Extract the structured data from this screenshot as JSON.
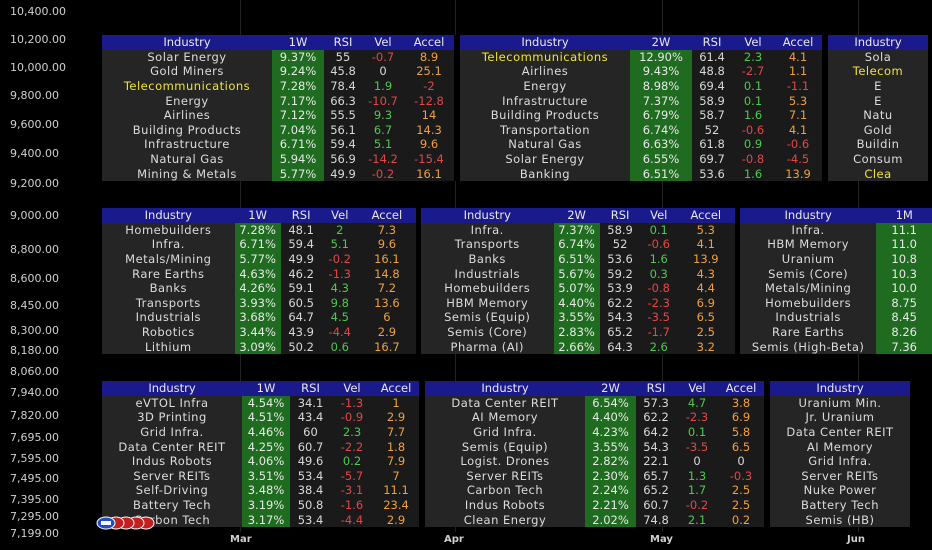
{
  "y_axis": {
    "labels": [
      "10,400.00",
      "10,200.00",
      "10,000.00",
      "9,800.00",
      "9,600.00",
      "9,400.00",
      "9,200.00",
      "9,000.00",
      "8,800.00",
      "8,600.00",
      "8,450.00",
      "8,300.00",
      "8,180.00",
      "8,060.00",
      "7,940.00",
      "7,820.00",
      "7,695.00",
      "7,595.00",
      "7,495.00",
      "7,395.00",
      "7,295.00",
      "7,199.00"
    ]
  },
  "x_axis": {
    "labels": [
      "Mar",
      "Apr",
      "May",
      "Jun"
    ]
  },
  "colors": {
    "header": "#1a1a8c",
    "pct_bg": "#1f6b1f",
    "pos": "#4ec94e",
    "neg": "#e04848",
    "accel_pos": "#f0a040",
    "highlight": "#f2e23a"
  },
  "badge_icon": "logo-badge-icon",
  "panels": [
    {
      "headers": [
        "Industry",
        "1W",
        "RSI",
        "Vel",
        "Accel",
        "Industry",
        "2W",
        "RSI",
        "Vel",
        "Accel",
        "Industry"
      ],
      "rows": [
        [
          "Solar Energy",
          "9.37%",
          "55",
          "-0.7",
          "8.9",
          "Telecommunications",
          "12.90%",
          "61.4",
          "2.3",
          "4.1",
          "Sola"
        ],
        [
          "Gold Miners",
          "9.24%",
          "45.8",
          "0",
          "25.1",
          "Airlines",
          "9.43%",
          "48.8",
          "-2.7",
          "1.1",
          "Telecom"
        ],
        [
          "Telecommunications",
          "7.28%",
          "78.4",
          "1.9",
          "-2",
          "Energy",
          "8.98%",
          "69.4",
          "0.1",
          "-1.1",
          "E"
        ],
        [
          "Energy",
          "7.17%",
          "66.3",
          "-10.7",
          "-12.8",
          "Infrastructure",
          "7.37%",
          "58.9",
          "0.1",
          "5.3",
          "E"
        ],
        [
          "Airlines",
          "7.12%",
          "55.5",
          "9.3",
          "14",
          "Building Products",
          "6.79%",
          "58.7",
          "1.6",
          "7.1",
          "Natu"
        ],
        [
          "Building Products",
          "7.04%",
          "56.1",
          "6.7",
          "14.3",
          "Transportation",
          "6.74%",
          "52",
          "-0.6",
          "4.1",
          "Gold"
        ],
        [
          "Infrastructure",
          "6.71%",
          "59.4",
          "5.1",
          "9.6",
          "Natural Gas",
          "6.63%",
          "61.8",
          "0.9",
          "-0.6",
          "Buildin"
        ],
        [
          "Natural Gas",
          "5.94%",
          "56.9",
          "-14.2",
          "-15.4",
          "Solar Energy",
          "6.55%",
          "69.7",
          "-0.8",
          "-4.5",
          "Consum"
        ],
        [
          "Mining & Metals",
          "5.77%",
          "49.9",
          "-0.2",
          "16.1",
          "Banking",
          "6.51%",
          "53.6",
          "1.6",
          "13.9",
          "Clea"
        ]
      ]
    },
    {
      "headers": [
        "Industry",
        "1W",
        "RSI",
        "Vel",
        "Accel",
        "Industry",
        "2W",
        "RSI",
        "Vel",
        "Accel",
        "Industry",
        "1M"
      ],
      "rows": [
        [
          "Homebuilders",
          "7.28%",
          "48.1",
          "2",
          "7.3",
          "Infra.",
          "7.37%",
          "58.9",
          "0.1",
          "5.3",
          "Infra.",
          "11.1"
        ],
        [
          "Infra.",
          "6.71%",
          "59.4",
          "5.1",
          "9.6",
          "Transports",
          "6.74%",
          "52",
          "-0.6",
          "4.1",
          "HBM Memory",
          "11.0"
        ],
        [
          "Metals/Mining",
          "5.77%",
          "49.9",
          "-0.2",
          "16.1",
          "Banks",
          "6.51%",
          "53.6",
          "1.6",
          "13.9",
          "Uranium",
          "10.8"
        ],
        [
          "Rare Earths",
          "4.63%",
          "46.2",
          "-1.3",
          "14.8",
          "Industrials",
          "5.67%",
          "59.2",
          "0.3",
          "4.3",
          "Semis (Core)",
          "10.3"
        ],
        [
          "Banks",
          "4.26%",
          "59.1",
          "4.3",
          "7.2",
          "Homebuilders",
          "5.07%",
          "53.9",
          "-0.8",
          "4.4",
          "Metals/Mining",
          "10.0"
        ],
        [
          "Transports",
          "3.93%",
          "60.5",
          "9.8",
          "13.6",
          "HBM Memory",
          "4.40%",
          "62.2",
          "-2.3",
          "6.9",
          "Homebuilders",
          "8.75"
        ],
        [
          "Industrials",
          "3.68%",
          "64.7",
          "4.5",
          "6",
          "Semis (Equip)",
          "3.55%",
          "54.3",
          "-3.5",
          "6.5",
          "Industrials",
          "8.45"
        ],
        [
          "Robotics",
          "3.44%",
          "43.9",
          "-4.4",
          "2.9",
          "Semis (Core)",
          "2.83%",
          "65.2",
          "-1.7",
          "2.5",
          "Rare Earths",
          "8.26"
        ],
        [
          "Lithium",
          "3.09%",
          "50.2",
          "0.6",
          "16.7",
          "Pharma (AI)",
          "2.66%",
          "64.3",
          "2.6",
          "3.2",
          "Semis (High-Beta)",
          "7.36"
        ]
      ]
    },
    {
      "headers": [
        "Industry",
        "1W",
        "RSI",
        "Vel",
        "Accel",
        "Industry",
        "2W",
        "RSI",
        "Vel",
        "Accel",
        "Industry"
      ],
      "rows": [
        [
          "eVTOL Infra",
          "4.54%",
          "34.1",
          "-1.3",
          "1",
          "Data Center REIT",
          "6.54%",
          "57.3",
          "4.7",
          "3.8",
          "Uranium Min."
        ],
        [
          "3D Printing",
          "4.51%",
          "43.4",
          "-0.9",
          "2.9",
          "AI Memory",
          "4.40%",
          "62.2",
          "-2.3",
          "6.9",
          "Jr. Uranium"
        ],
        [
          "Grid Infra.",
          "4.46%",
          "60",
          "2.3",
          "7.7",
          "Grid Infra.",
          "4.23%",
          "64.2",
          "0.1",
          "5.8",
          "Data Center REIT"
        ],
        [
          "Data Center REIT",
          "4.25%",
          "60.7",
          "-2.2",
          "1.8",
          "Semis (Equip)",
          "3.55%",
          "54.3",
          "-3.5",
          "6.5",
          "AI Memory"
        ],
        [
          "Indus Robots",
          "4.06%",
          "49.6",
          "0.2",
          "7.9",
          "Logist. Drones",
          "2.82%",
          "22.1",
          "0",
          "0",
          "Grid Infra."
        ],
        [
          "Server REITs",
          "3.51%",
          "53.4",
          "-5.7",
          "7",
          "Server REITs",
          "2.30%",
          "65.7",
          "1.3",
          "-0.3",
          "Server REITs"
        ],
        [
          "Self-Driving",
          "3.48%",
          "38.4",
          "-3.1",
          "11.1",
          "Carbon Tech",
          "2.24%",
          "65.2",
          "1.7",
          "2.5",
          "Nuke Power"
        ],
        [
          "Battery Tech",
          "3.19%",
          "50.8",
          "-1.6",
          "23.4",
          "Indus Robots",
          "2.21%",
          "60.7",
          "-0.2",
          "2.5",
          "Battery Tech"
        ],
        [
          "Carbon Tech",
          "3.17%",
          "53.4",
          "-4.4",
          "2.9",
          "Clean Energy",
          "2.02%",
          "74.8",
          "2.1",
          "0.2",
          "Semis (HB)"
        ]
      ]
    }
  ]
}
